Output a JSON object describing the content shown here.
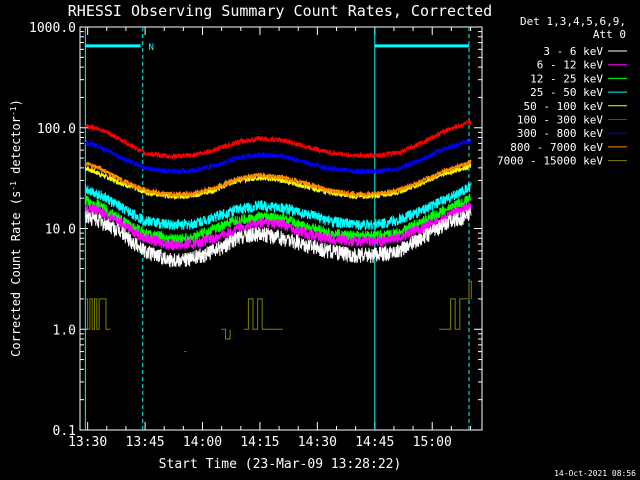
{
  "chart_data": {
    "type": "line",
    "title": "RHESSI Observing Summary Count Rates, Corrected",
    "xlabel": "Start Time (23-Mar-09 13:28:22)",
    "ylabel_main": "Corrected Count Rate (s",
    "ylabel_sup1": "-1",
    "ylabel_mid": " detector",
    "ylabel_sup2": "-1",
    "ylabel_end": ")",
    "y_scale": "log",
    "ylim": [
      0.1,
      1000
    ],
    "xlim_minutes": [
      13.4667,
      15.2167
    ],
    "x_ticks": [
      {
        "label": "13:30",
        "hours": 13.5
      },
      {
        "label": "13:45",
        "hours": 13.75
      },
      {
        "label": "14:00",
        "hours": 14.0
      },
      {
        "label": "14:15",
        "hours": 14.25
      },
      {
        "label": "14:30",
        "hours": 14.5
      },
      {
        "label": "14:45",
        "hours": 14.75
      },
      {
        "label": "15:00",
        "hours": 15.0
      }
    ],
    "y_ticks": [
      {
        "label": "1000.0",
        "value": 1000
      },
      {
        "label": "100.0",
        "value": 100
      },
      {
        "label": "10.0",
        "value": 10
      },
      {
        "label": "1.0",
        "value": 1
      },
      {
        "label": "0.1",
        "value": 0.1
      }
    ],
    "legend_header": [
      "Det 1,3,4,5,6,9,",
      "Att 0"
    ],
    "legend_placement": "right",
    "series": [
      {
        "name": "3 - 6 keV",
        "color": "#ffffff",
        "x": [
          13.49,
          13.55,
          13.65,
          13.75,
          13.85,
          13.95,
          14.05,
          14.15,
          14.25,
          14.35,
          14.45,
          14.55,
          14.65,
          14.75,
          14.85,
          14.95,
          15.05,
          15.17
        ],
        "values": [
          13,
          12,
          9,
          6,
          5,
          5,
          6,
          8,
          9,
          8,
          7,
          6,
          5.5,
          5.5,
          6,
          8,
          11,
          14
        ]
      },
      {
        "name": "6 - 12 keV",
        "color": "#ff00ff",
        "x": [
          13.49,
          13.55,
          13.65,
          13.75,
          13.85,
          13.95,
          14.05,
          14.15,
          14.25,
          14.35,
          14.45,
          14.55,
          14.65,
          14.75,
          14.85,
          14.95,
          15.05,
          15.17
        ],
        "values": [
          16,
          15,
          11,
          8,
          7,
          7,
          8,
          10,
          11.5,
          11,
          9,
          8,
          7.5,
          7.5,
          8,
          10,
          13,
          17
        ]
      },
      {
        "name": "12 - 25 keV",
        "color": "#00ff00",
        "x": [
          13.49,
          13.55,
          13.65,
          13.75,
          13.85,
          13.95,
          14.05,
          14.15,
          14.25,
          14.35,
          14.45,
          14.55,
          14.65,
          14.75,
          14.85,
          14.95,
          15.05,
          15.17
        ],
        "values": [
          19,
          17,
          12,
          9,
          8,
          8,
          10,
          12,
          13,
          12.5,
          10.5,
          9,
          8.5,
          8.5,
          9,
          11.5,
          15,
          20
        ]
      },
      {
        "name": "25 - 50 keV",
        "color": "#00ffff",
        "x": [
          13.49,
          13.55,
          13.65,
          13.75,
          13.85,
          13.95,
          14.05,
          14.15,
          14.25,
          14.35,
          14.45,
          14.55,
          14.65,
          14.75,
          14.85,
          14.95,
          15.05,
          15.17
        ],
        "values": [
          25,
          22,
          16,
          12,
          11,
          11,
          13,
          15.5,
          17,
          16,
          14,
          12,
          11,
          11,
          12,
          15,
          19,
          26
        ]
      },
      {
        "name": "50 - 100 keV",
        "color": "#ffff00",
        "x": [
          13.49,
          13.55,
          13.65,
          13.75,
          13.85,
          13.95,
          14.05,
          14.15,
          14.25,
          14.35,
          14.45,
          14.55,
          14.65,
          14.75,
          14.85,
          14.95,
          15.05,
          15.17
        ],
        "values": [
          40,
          35,
          28,
          23,
          21,
          21,
          24,
          30,
          32,
          30,
          26,
          23,
          21,
          21,
          23,
          28,
          35,
          42
        ]
      },
      {
        "name": "100 - 300 keV",
        "color": "#ff0000",
        "x": [
          13.49,
          13.55,
          13.65,
          13.75,
          13.85,
          13.95,
          14.05,
          14.15,
          14.25,
          14.35,
          14.45,
          14.55,
          14.65,
          14.75,
          14.85,
          14.95,
          15.05,
          15.17
        ],
        "values": [
          105,
          98,
          75,
          56,
          52,
          53,
          60,
          72,
          78,
          75,
          65,
          57,
          53,
          53,
          56,
          70,
          92,
          115
        ]
      },
      {
        "name": "300 - 800 keV",
        "color": "#0000ff",
        "x": [
          13.49,
          13.55,
          13.65,
          13.75,
          13.85,
          13.95,
          14.05,
          14.15,
          14.25,
          14.35,
          14.45,
          14.55,
          14.65,
          14.75,
          14.85,
          14.95,
          15.05,
          15.17
        ],
        "values": [
          72,
          65,
          50,
          40,
          37,
          37,
          42,
          50,
          54,
          52,
          45,
          40,
          37,
          37,
          39,
          48,
          62,
          75
        ]
      },
      {
        "name": "800 - 7000 keV",
        "color": "#ff8c00",
        "x": [
          13.49,
          13.55,
          13.65,
          13.75,
          13.85,
          13.95,
          14.05,
          14.15,
          14.25,
          14.35,
          14.45,
          14.55,
          14.65,
          14.75,
          14.85,
          14.95,
          15.05,
          15.17
        ],
        "values": [
          44,
          40,
          30,
          24,
          22,
          22,
          25,
          31,
          34,
          32,
          28,
          24,
          22,
          22,
          24,
          29,
          37,
          46
        ]
      },
      {
        "name": "7000 - 15000 keV",
        "color": "#808000",
        "segments": [
          {
            "x": [
              13.49,
              13.5,
              13.51,
              13.52,
              13.53,
              13.54,
              13.55,
              13.58,
              13.6
            ],
            "values": [
              2,
              1,
              2,
              1,
              2,
              1,
              2,
              1,
              1
            ]
          },
          {
            "x": [
              13.92,
              13.93
            ],
            "values": [
              0.6,
              0.6
            ]
          },
          {
            "x": [
              14.08,
              14.1,
              14.12
            ],
            "values": [
              1,
              0.8,
              1
            ]
          },
          {
            "x": [
              14.18,
              14.2,
              14.22,
              14.24,
              14.26,
              14.3,
              14.35
            ],
            "values": [
              1,
              2,
              1,
              2,
              1,
              1,
              1
            ]
          },
          {
            "x": [
              15.03,
              15.06,
              15.08,
              15.1,
              15.12,
              15.14,
              15.16,
              15.17
            ],
            "values": [
              1,
              1,
              2,
              1,
              2,
              2,
              3,
              2
            ]
          }
        ]
      }
    ],
    "flags": [
      {
        "label": "N",
        "color": "#00ffff",
        "x_start": 13.49,
        "x_end": 13.73,
        "value": 650
      },
      {
        "color": "#00ffff",
        "x_start": 14.75,
        "x_end": 15.16,
        "value": 650
      }
    ],
    "vertical_lines": [
      {
        "x": 13.49,
        "style": "solid",
        "color": "#00ffff"
      },
      {
        "x": 13.74,
        "style": "dashed",
        "color": "#00ffff"
      },
      {
        "x": 14.75,
        "style": "solid",
        "color": "#00ffff"
      },
      {
        "x": 15.16,
        "style": "dashed",
        "color": "#00ffff"
      }
    ]
  },
  "footer_timestamp": "14-Oct-2021 08:56"
}
